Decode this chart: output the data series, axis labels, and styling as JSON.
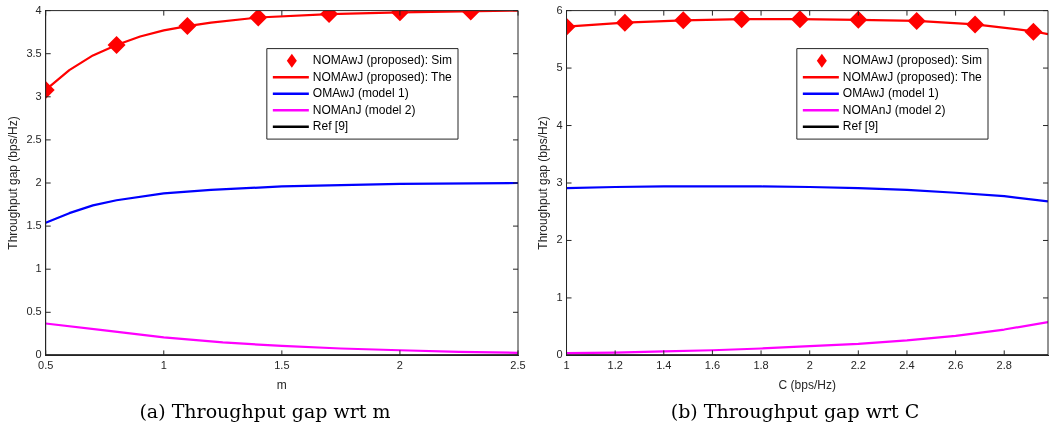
{
  "chart_data": [
    {
      "type": "line",
      "xlabel": "m",
      "ylabel": "Throughput gap (bps/Hz)",
      "annotations": [
        "(a) Throughput gap wrt m"
      ],
      "xlim": [
        0.5,
        2.5
      ],
      "xticks": [
        0.5,
        1,
        1.5,
        2,
        2.5
      ],
      "ylim": [
        0,
        4
      ],
      "yticks": [
        0,
        0.5,
        1,
        1.5,
        2,
        2.5,
        3,
        3.5,
        4
      ],
      "grid": false,
      "legend": "top right",
      "series": [
        {
          "name": "NOMAwJ (proposed): Sim",
          "type": "scatter",
          "marker": "diamond",
          "color": "#ff0000",
          "x": [
            0.5,
            0.8,
            1.1,
            1.4,
            1.7,
            2.0,
            2.3
          ],
          "values": [
            3.08,
            3.6,
            3.82,
            3.92,
            3.96,
            3.98,
            3.99
          ]
        },
        {
          "name": "NOMAwJ (proposed): The",
          "type": "line",
          "marker": "none",
          "color": "#ff0000",
          "x": [
            0.5,
            0.6,
            0.7,
            0.8,
            0.9,
            1.0,
            1.1,
            1.2,
            1.4,
            1.7,
            2.0,
            2.5
          ],
          "values": [
            3.08,
            3.31,
            3.48,
            3.6,
            3.7,
            3.77,
            3.82,
            3.86,
            3.92,
            3.96,
            3.98,
            4.0
          ]
        },
        {
          "name": "OMAwJ (model 1)",
          "type": "line",
          "marker": "none",
          "color": "#0000ff",
          "x": [
            0.5,
            0.6,
            0.7,
            0.8,
            1.0,
            1.2,
            1.5,
            2.0,
            2.5
          ],
          "values": [
            1.54,
            1.65,
            1.74,
            1.8,
            1.88,
            1.92,
            1.96,
            1.99,
            2.0
          ]
        },
        {
          "name": "NOMAnJ (model 2)",
          "type": "line",
          "marker": "none",
          "color": "#ff00ff",
          "x": [
            0.5,
            0.75,
            1.0,
            1.25,
            1.5,
            1.75,
            2.0,
            2.25,
            2.5
          ],
          "values": [
            0.37,
            0.29,
            0.21,
            0.15,
            0.11,
            0.08,
            0.06,
            0.04,
            0.03
          ]
        },
        {
          "name": "Ref [9]",
          "type": "line",
          "marker": "none",
          "color": "#000000",
          "x": [
            0.5,
            2.5
          ],
          "values": [
            0,
            0
          ]
        }
      ]
    },
    {
      "type": "line",
      "xlabel": "C (bps/Hz)",
      "ylabel": "Throughput gap (bps/Hz)",
      "annotations": [
        "(b) Throughput gap wrt C"
      ],
      "xlim": [
        1,
        2.98
      ],
      "xticks": [
        1,
        1.2,
        1.4,
        1.6,
        1.8,
        2,
        2.2,
        2.4,
        2.6,
        2.8
      ],
      "ylim": [
        0,
        6
      ],
      "yticks": [
        0,
        1,
        2,
        3,
        4,
        5,
        6
      ],
      "grid": false,
      "legend": "top right",
      "series": [
        {
          "name": "NOMAwJ (proposed): Sim",
          "type": "scatter",
          "marker": "diamond",
          "color": "#ff0000",
          "x": [
            1,
            1.24,
            1.48,
            1.72,
            1.96,
            2.2,
            2.44,
            2.68,
            2.92
          ],
          "values": [
            5.72,
            5.79,
            5.83,
            5.85,
            5.85,
            5.84,
            5.82,
            5.76,
            5.63
          ]
        },
        {
          "name": "NOMAwJ (proposed): The",
          "type": "line",
          "marker": "none",
          "color": "#ff0000",
          "x": [
            1,
            1.24,
            1.48,
            1.72,
            1.96,
            2.2,
            2.44,
            2.68,
            2.92,
            2.98
          ],
          "values": [
            5.72,
            5.79,
            5.83,
            5.85,
            5.85,
            5.84,
            5.82,
            5.76,
            5.64,
            5.59
          ]
        },
        {
          "name": "OMAwJ (model 1)",
          "type": "line",
          "marker": "none",
          "color": "#0000ff",
          "x": [
            1,
            1.2,
            1.4,
            1.6,
            1.8,
            2.0,
            2.2,
            2.4,
            2.6,
            2.8,
            2.98
          ],
          "values": [
            2.91,
            2.93,
            2.94,
            2.94,
            2.94,
            2.93,
            2.91,
            2.88,
            2.83,
            2.77,
            2.68
          ]
        },
        {
          "name": "NOMAnJ (model 2)",
          "type": "line",
          "marker": "none",
          "color": "#ff00ff",
          "x": [
            1,
            1.2,
            1.4,
            1.6,
            1.8,
            2.0,
            2.2,
            2.4,
            2.6,
            2.8,
            2.98
          ],
          "values": [
            0.04,
            0.05,
            0.07,
            0.09,
            0.12,
            0.16,
            0.2,
            0.26,
            0.34,
            0.45,
            0.58
          ]
        },
        {
          "name": "Ref [9]",
          "type": "line",
          "marker": "none",
          "color": "#000000",
          "x": [
            1,
            2.98
          ],
          "values": [
            0,
            0
          ]
        }
      ]
    }
  ]
}
